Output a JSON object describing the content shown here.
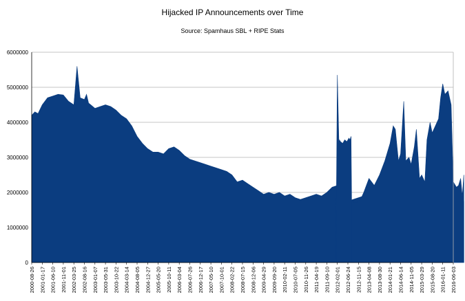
{
  "chart_data": {
    "type": "area",
    "title": "Hijacked IP Announcements over Time",
    "subtitle": "Source:  Spamhaus SBL + RIPE Stats",
    "xlabel": "",
    "ylabel": "",
    "ylim": [
      0,
      6000000
    ],
    "y_ticks": [
      "0",
      "1000000",
      "2000000",
      "3000000",
      "4000000",
      "5000000",
      "6000000"
    ],
    "grid": true,
    "color": "#0b3d80",
    "x_tick_labels": [
      "2000-08-26",
      "2001-01-17",
      "2001-06-10",
      "2001-11-01",
      "2002-03-25",
      "2002-08-16",
      "2003-01-07",
      "2003-05-31",
      "2003-10-22",
      "2004-03-14",
      "2004-08-05",
      "2004-12-27",
      "2005-05-20",
      "2005-10-11",
      "2006-03-04",
      "2006-07-26",
      "2006-12-17",
      "2007-05-10",
      "2007-10-01",
      "2008-02-22",
      "2008-07-15",
      "2008-12-06",
      "2009-04-29",
      "2009-09-20",
      "2010-02-11",
      "2010-07-05",
      "2010-11-26",
      "2011-04-19",
      "2011-09-10",
      "2012-02-01",
      "2012-06-24",
      "2012-11-15",
      "2013-04-08",
      "2013-08-30",
      "2014-01-21",
      "2014-06-14",
      "2014-11-05",
      "2015-03-29",
      "2015-08-20",
      "2016-01-11",
      "2016-06-03"
    ],
    "series": [
      {
        "name": "Hijacked IP Announcements",
        "x": [
          0,
          0.3,
          0.6,
          1.0,
          1.5,
          2.0,
          2.5,
          3.0,
          3.5,
          4.0,
          4.3,
          4.6,
          5.0,
          5.2,
          5.4,
          5.6,
          6.0,
          6.5,
          7.0,
          7.5,
          8.0,
          8.5,
          9.0,
          9.5,
          10.0,
          10.5,
          11.0,
          11.5,
          12.0,
          12.5,
          13.0,
          13.5,
          14.0,
          14.5,
          15.0,
          15.5,
          16.0,
          16.5,
          17.0,
          17.5,
          18.0,
          18.5,
          19.0,
          19.5,
          20.0,
          20.5,
          21.0,
          21.5,
          22.0,
          22.5,
          23.0,
          23.5,
          24.0,
          24.5,
          25.0,
          25.5,
          26.0,
          26.5,
          27.0,
          27.5,
          28.0,
          28.5,
          29.0,
          29.5,
          29.7,
          29.8,
          30.0,
          30.5,
          31.0,
          31.5,
          31.8,
          32.0,
          32.3,
          32.5,
          33.0,
          33.5,
          34.0,
          34.5,
          35.0,
          35.3,
          35.5,
          35.8,
          36.0,
          36.3,
          36.5,
          37.0,
          37.5,
          38.0,
          38.3,
          38.5,
          38.8,
          39.0,
          39.3,
          39.5,
          39.8,
          40.0,
          40.3,
          40.5,
          40.8,
          41.0
        ],
        "values": [
          4200000,
          4300000,
          4250000,
          4500000,
          4700000,
          4750000,
          4800000,
          4780000,
          4600000,
          4500000,
          5600000,
          4700000,
          4650000,
          4800000,
          4550000,
          4500000,
          4400000,
          4450000,
          4500000,
          4450000,
          4350000,
          4200000,
          4100000,
          3900000,
          3600000,
          3400000,
          3250000,
          3150000,
          3150000,
          3100000,
          3250000,
          3300000,
          3200000,
          3050000,
          2950000,
          2900000,
          2850000,
          2800000,
          2750000,
          2700000,
          2650000,
          2600000,
          2500000,
          2300000,
          2350000,
          2250000,
          2150000,
          2050000,
          1950000,
          2000000,
          1950000,
          2000000,
          1900000,
          1950000,
          1850000,
          1800000,
          1850000,
          1900000,
          1950000,
          1900000,
          2000000,
          2150000,
          2200000,
          2000000,
          1850000,
          1800000,
          1750000,
          1800000,
          1850000,
          1900000,
          1800000,
          1850000,
          1900000,
          1950000,
          1800000,
          1850000,
          1900000,
          1950000,
          1850000,
          1800000,
          1800000,
          1750000,
          1800000,
          1850000,
          1750000,
          1900000,
          1800000,
          1950000,
          1750000,
          1850000,
          1800000,
          1750000,
          1800000,
          1850000,
          1850000,
          1800000,
          1800000,
          1750000,
          1800000,
          1750000
        ],
        "extra_segments": [
          {
            "x": [
              28.9,
              29.0,
              29.15,
              29.2,
              29.3,
              29.5,
              29.7,
              29.9,
              30.0,
              30.1,
              30.2,
              30.3,
              30.35
            ],
            "values": [
              1600000,
              5350000,
              3400000,
              3500000,
              3450000,
              3400000,
              3500000,
              3450000,
              3500000,
              3550000,
              3500000,
              3600000,
              1750000
            ]
          },
          {
            "x": [
              30.35,
              30.8,
              31.2,
              31.5,
              32.0,
              32.5,
              33.0,
              33.5,
              34.0,
              34.3,
              34.5,
              34.8,
              35.0,
              35.3,
              35.5,
              35.8,
              36.0,
              36.3,
              36.5,
              36.8,
              37.0,
              37.3,
              37.5,
              37.8,
              38.0,
              38.3,
              38.6,
              38.8,
              39.0,
              39.2,
              39.5,
              39.8,
              40.0,
              40.3,
              40.5,
              40.7,
              40.85,
              41.0
            ],
            "values": [
              1750000,
              1700000,
              1800000,
              2000000,
              2400000,
              2200000,
              2500000,
              2900000,
              3400000,
              3900000,
              3800000,
              2900000,
              3100000,
              4600000,
              2900000,
              3000000,
              2800000,
              3300000,
              3800000,
              2400000,
              2500000,
              2300000,
              3500000,
              4000000,
              3700000,
              3900000,
              4100000,
              4700000,
              5100000,
              4800000,
              4900000,
              4500000,
              2300000,
              2150000,
              2200000,
              2400000,
              1900000,
              2500000
            ]
          }
        ]
      }
    ]
  }
}
